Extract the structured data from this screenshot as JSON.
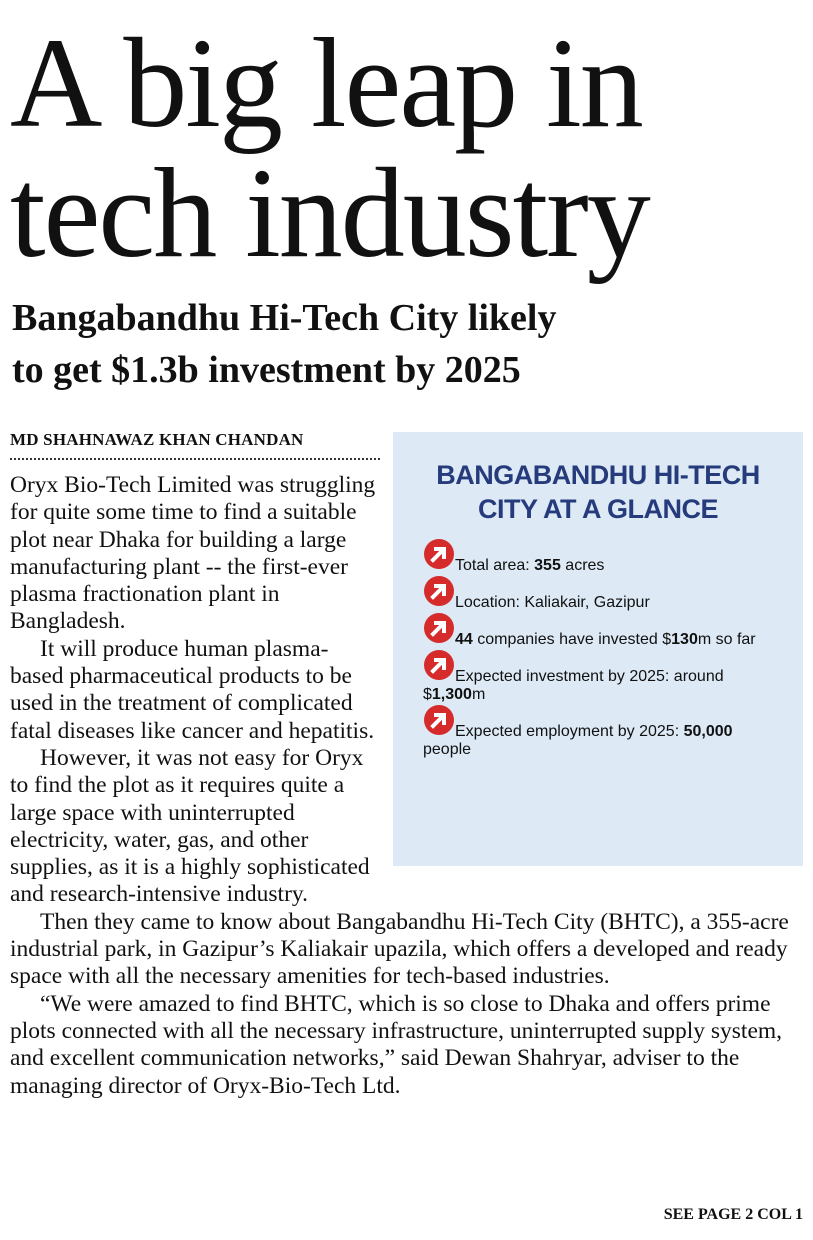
{
  "header": {
    "title_lines": [
      "A big leap in",
      "tech industry"
    ],
    "subtitle_lines": [
      "Bangabandhu Hi-Tech City likely",
      "to get $1.3b investment by 2025"
    ]
  },
  "byline": "MD SHAHNAWAZ KHAN CHANDAN",
  "sidebar": {
    "title_lines": [
      "BANGABANDHU HI-TECH",
      "CITY AT A GLANCE"
    ],
    "items": [
      {
        "segments": [
          {
            "text": "Total area: ",
            "bold": false
          },
          {
            "text": "355",
            "bold": true
          },
          {
            "text": " acres",
            "bold": false
          }
        ]
      },
      {
        "segments": [
          {
            "text": "Location: Kaliakair, Gazipur",
            "bold": false
          }
        ]
      },
      {
        "segments": [
          {
            "text": "44",
            "bold": true
          },
          {
            "text": " companies have invested $",
            "bold": false
          },
          {
            "text": "130",
            "bold": true
          },
          {
            "text": "m so far",
            "bold": false
          }
        ]
      },
      {
        "segments": [
          {
            "text": "Expected investment by 2025: around $",
            "bold": false
          },
          {
            "text": "1,300",
            "bold": true
          },
          {
            "text": "m",
            "bold": false
          }
        ]
      },
      {
        "segments": [
          {
            "text": "Expected employment by 2025: ",
            "bold": false
          },
          {
            "text": "50,000",
            "bold": true
          },
          {
            "text": " people",
            "bold": false
          }
        ]
      }
    ]
  },
  "body": {
    "paragraphs": [
      "Oryx Bio-Tech Limited was struggling for quite some time to find a suitable plot near Dhaka for building a large manufacturing plant -- the first-ever plasma fractionation plant in Bangladesh.",
      "It will produce human plasma-based pharmaceutical products to be used in the treatment of complicated fatal diseases like cancer and hepatitis.",
      "However, it was not easy for Oryx to find the plot as it requires quite a large space with uninterrupted electricity, water, gas, and other supplies, as it is a highly sophisticated and research-intensive industry.",
      "Then they came to know about Bangabandhu Hi-Tech City (BHTC), a 355-acre industrial park, in Gazipur’s Kaliakair upazila, which offers a developed and ready space with all the necessary amenities for tech-based industries.",
      "“We were amazed to find BHTC, which is so close to Dhaka and offers prime plots connected with all the necessary infrastructure, uninterrupted supply system, and excellent communication networks,” said Dewan Shahryar, adviser to the managing director of Oryx-Bio-Tech Ltd."
    ]
  },
  "footer": "SEE PAGE 2 COL 1"
}
